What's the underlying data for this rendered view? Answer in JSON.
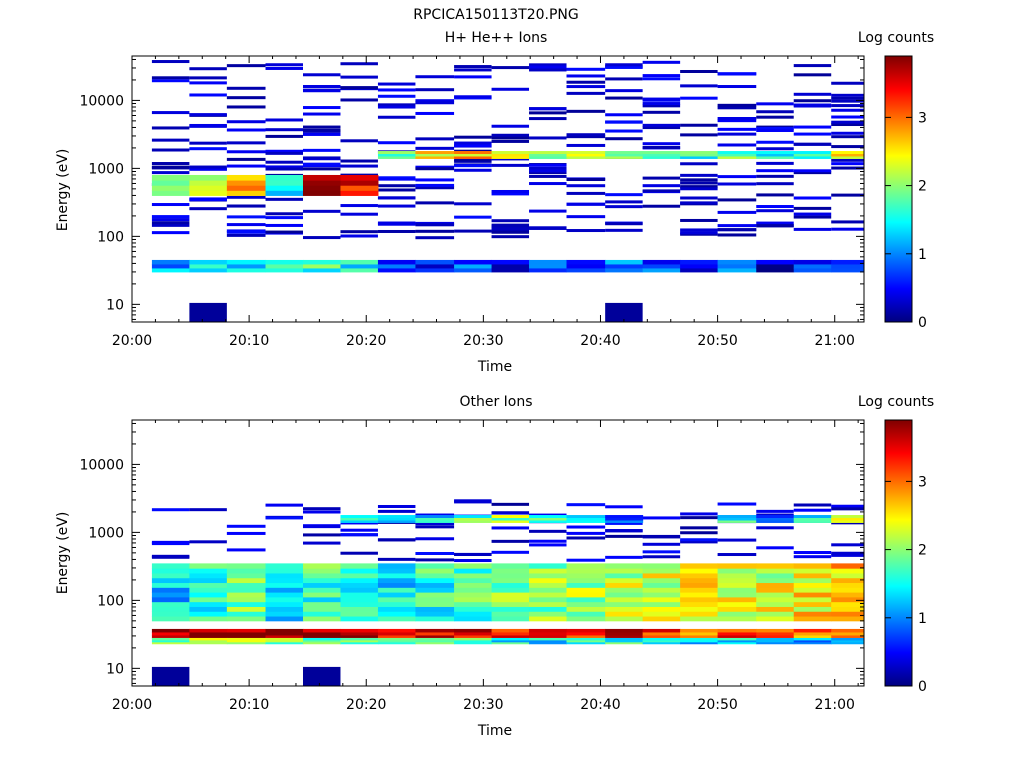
{
  "figure": {
    "title": "RPCICA150113T20.PNG"
  },
  "chart_data": [
    {
      "type": "heatmap",
      "title": "H+ He++ Ions",
      "xlabel": "Time",
      "ylabel": "Energy (eV)",
      "x_ticks": [
        "20:00",
        "20:10",
        "20:20",
        "20:30",
        "20:40",
        "20:50",
        "21:00"
      ],
      "y_ticks": [
        "10",
        "100",
        "1000",
        "10000"
      ],
      "y_scale": "log",
      "ylim": [
        5.5,
        45000
      ],
      "xlim_minutes": [
        0,
        62.5
      ],
      "colorbar": {
        "label": "Log counts",
        "ticks": [
          "0",
          "1",
          "2",
          "3"
        ],
        "range": [
          0,
          3.9
        ]
      },
      "time_bins_minutes": [
        [
          1.7,
          4.9
        ],
        [
          4.9,
          8.1
        ],
        [
          8.1,
          11.4
        ],
        [
          11.4,
          14.6
        ],
        [
          14.6,
          17.8
        ],
        [
          17.8,
          21.0
        ],
        [
          21.0,
          24.2
        ],
        [
          24.2,
          27.5
        ],
        [
          27.5,
          30.7
        ],
        [
          30.7,
          33.9
        ],
        [
          33.9,
          37.1
        ],
        [
          37.1,
          40.4
        ],
        [
          40.4,
          43.6
        ],
        [
          43.6,
          46.8
        ],
        [
          46.8,
          50.0
        ],
        [
          50.0,
          53.3
        ],
        [
          53.3,
          56.5
        ],
        [
          56.5,
          59.7
        ],
        [
          59.7,
          62.5
        ]
      ],
      "strong_bands_eV": [
        {
          "bins": [
            0,
            1,
            2,
            3,
            4,
            5
          ],
          "from": 400,
          "to": 800,
          "values": [
            2.2,
            2.4,
            2.8,
            1.6,
            3.6,
            3.5
          ]
        },
        {
          "bins": [
            6,
            7,
            8,
            9,
            10,
            11,
            12,
            13,
            14,
            15,
            16,
            17,
            18
          ],
          "from": 1400,
          "to": 1800,
          "values": [
            1.9,
            2.5,
            2.6,
            2.4,
            2.2,
            2.0,
            1.7,
            1.8,
            1.6,
            1.9,
            1.5,
            1.4,
            2.3
          ]
        },
        {
          "bins": [
            0,
            1,
            2,
            3,
            4,
            5,
            6,
            7,
            8,
            9,
            10,
            11,
            12,
            13,
            14,
            15,
            16,
            17,
            18
          ],
          "from": 30,
          "to": 45,
          "values": [
            1.2,
            1.5,
            1.4,
            1.6,
            1.7,
            1.5,
            0.8,
            0.6,
            0.9,
            0.5,
            1.0,
            0.5,
            0.9,
            0.8,
            0.6,
            1.0,
            0.4,
            0.7,
            0.5
          ]
        }
      ],
      "sparse_low_counts": "scattered 0-0.5 log-count pixels between 100 eV and 40 keV",
      "blocks_eV": [
        {
          "bins": [
            1
          ],
          "from": 5.5,
          "to": 10.5,
          "value": 0.1
        },
        {
          "bins": [
            12
          ],
          "from": 5.5,
          "to": 10.5,
          "value": 0.1
        }
      ]
    },
    {
      "type": "heatmap",
      "title": "Other Ions",
      "xlabel": "Time",
      "ylabel": "Energy (eV)",
      "x_ticks": [
        "20:00",
        "20:10",
        "20:20",
        "20:30",
        "20:40",
        "20:50",
        "21:00"
      ],
      "y_ticks": [
        "10",
        "100",
        "1000",
        "10000"
      ],
      "y_scale": "log",
      "ylim": [
        5.5,
        45000
      ],
      "xlim_minutes": [
        0,
        62.5
      ],
      "colorbar": {
        "label": "Log counts",
        "ticks": [
          "0",
          "1",
          "2",
          "3"
        ],
        "range": [
          0,
          3.9
        ]
      },
      "strong_bands_eV": [
        {
          "from": 28,
          "to": 38,
          "values": [
            3.7,
            3.7,
            3.8,
            3.9,
            3.7,
            3.6,
            3.5,
            3.6,
            3.6,
            3.5,
            3.3,
            3.4,
            3.5,
            3.2,
            3.1,
            3.2,
            3.1,
            3.0,
            3.2
          ]
        },
        {
          "from": 23,
          "to": 28,
          "values": [
            2.0,
            2.2,
            2.1,
            2.0,
            1.8,
            1.9,
            1.7,
            1.6,
            1.7,
            1.5,
            1.4,
            1.5,
            1.6,
            1.3,
            1.2,
            1.3,
            1.2,
            1.1,
            1.2
          ]
        },
        {
          "from": 50,
          "to": 350,
          "values": [
            1.3,
            1.6,
            1.8,
            1.4,
            1.7,
            1.5,
            1.4,
            1.6,
            1.7,
            1.9,
            2.0,
            2.1,
            2.2,
            2.3,
            2.4,
            2.4,
            2.3,
            2.5,
            2.6
          ]
        },
        {
          "from": 1400,
          "to": 1800,
          "values": [
            0,
            0,
            0,
            0,
            0,
            1.5,
            1.2,
            1.4,
            1.8,
            2.0,
            1.6,
            1.2,
            1.0,
            0,
            0,
            1.5,
            0.8,
            1.6,
            2.1
          ]
        }
      ],
      "blocks_eV": [
        {
          "bins": [
            0
          ],
          "from": 5.5,
          "to": 10.5,
          "value": 0.1
        },
        {
          "bins": [
            4
          ],
          "from": 5.5,
          "to": 10.5,
          "value": 0.1
        }
      ]
    }
  ]
}
